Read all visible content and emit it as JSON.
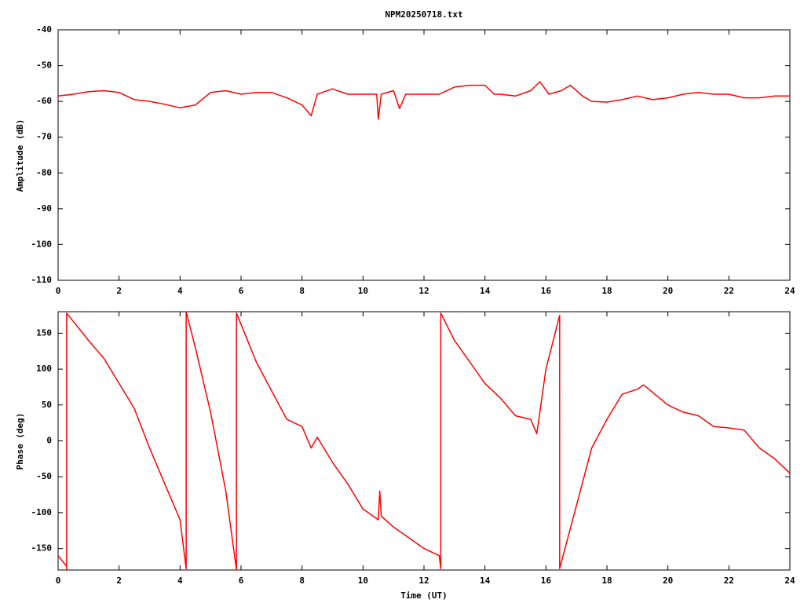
{
  "chart_data": [
    {
      "type": "line",
      "title": "NPM20250718.txt",
      "ylabel": "Amplitude (dB)",
      "xlim": [
        0,
        24
      ],
      "xticks": [
        0,
        2,
        4,
        6,
        8,
        10,
        12,
        14,
        16,
        18,
        20,
        22,
        24
      ],
      "ylim": [
        -110,
        -40
      ],
      "yticks": [
        -110,
        -100,
        -90,
        -80,
        -70,
        -60,
        -50,
        -40
      ],
      "x": [
        0,
        0.5,
        1,
        1.5,
        2,
        2.5,
        3,
        3.5,
        4,
        4.5,
        5,
        5.5,
        6,
        6.5,
        7,
        7.5,
        8,
        8.3,
        8.5,
        9,
        9.5,
        10,
        10.45,
        10.5,
        10.6,
        11,
        11.2,
        11.4,
        12,
        12.5,
        13,
        13.5,
        14,
        14.3,
        14.5,
        15,
        15.5,
        15.8,
        16.1,
        16.5,
        16.8,
        17.2,
        17.5,
        18,
        18.5,
        19,
        19.5,
        20,
        20.5,
        21,
        21.5,
        22,
        22.5,
        23,
        23.5,
        24
      ],
      "series": [
        {
          "color": "#ff0000",
          "values": [
            -58.5,
            -58,
            -57.3,
            -57,
            -57.5,
            -59.5,
            -60,
            -60.8,
            -61.8,
            -61,
            -57.5,
            -57,
            -58,
            -57.5,
            -57.5,
            -59,
            -61,
            -64,
            -58,
            -56.5,
            -58,
            -58,
            -58,
            -65,
            -58,
            -57,
            -62,
            -58,
            -58,
            -58,
            -56,
            -55.5,
            -55.5,
            -58,
            -58,
            -58.5,
            -57,
            -54.5,
            -58,
            -57,
            -55.5,
            -58.5,
            -60,
            -60.2,
            -59.5,
            -58.5,
            -59.5,
            -59,
            -58,
            -57.5,
            -58,
            -58,
            -59,
            -59,
            -58.5,
            -58.5
          ]
        }
      ]
    },
    {
      "type": "line",
      "xlabel": "Time (UT)",
      "ylabel": "Phase (deg)",
      "xlim": [
        0,
        24
      ],
      "xticks": [
        0,
        2,
        4,
        6,
        8,
        10,
        12,
        14,
        16,
        18,
        20,
        22,
        24
      ],
      "ylim": [
        -180,
        180
      ],
      "yticks": [
        -150,
        -100,
        -50,
        0,
        50,
        100,
        150
      ],
      "x": [
        0,
        0.28,
        0.28,
        0.28,
        1,
        1.5,
        2,
        2.5,
        3,
        3.5,
        4,
        4.2,
        4.2,
        4.5,
        5,
        5.5,
        5.85,
        5.85,
        6.5,
        7,
        7.5,
        8,
        8.3,
        8.5,
        9,
        9.5,
        10,
        10.5,
        10.55,
        10.6,
        11,
        11.5,
        12,
        12.5,
        12.55,
        12.55,
        13,
        13.5,
        14,
        14.5,
        15,
        15.5,
        15.7,
        16,
        16.3,
        16.45,
        16.45,
        17,
        17.5,
        18,
        18.5,
        19,
        19.2,
        20,
        20.5,
        21,
        21.5,
        22,
        22.5,
        23,
        23.5,
        24
      ],
      "series": [
        {
          "color": "#ff0000",
          "values": [
            -160,
            -175,
            -180,
            178,
            140,
            115,
            80,
            45,
            -10,
            -60,
            -110,
            -178,
            180,
            130,
            40,
            -70,
            -180,
            178,
            110,
            70,
            30,
            20,
            -10,
            5,
            -30,
            -60,
            -95,
            -110,
            -70,
            -105,
            -120,
            -135,
            -150,
            -160,
            -178,
            178,
            140,
            110,
            80,
            60,
            35,
            30,
            10,
            100,
            150,
            175,
            -178,
            -90,
            -10,
            30,
            65,
            72,
            78,
            50,
            40,
            35,
            20,
            18,
            15,
            -10,
            -25,
            -45
          ]
        }
      ]
    }
  ]
}
